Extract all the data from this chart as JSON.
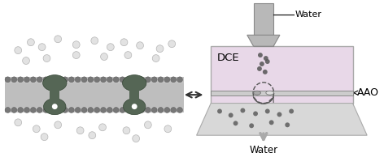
{
  "bg_color": "#ffffff",
  "membrane_gray": "#888888",
  "membrane_dark": "#555555",
  "membrane_light": "#aaaaaa",
  "protein_dark": "#556655",
  "protein_med": "#778877",
  "dce_box_face": "#e8e0e8",
  "dce_box_edge": "#aaaaaa",
  "tube_face": "#b0b0b0",
  "tube_edge": "#888888",
  "funnel_face": "#d0d0d0",
  "funnel_edge": "#aaaaaa",
  "arrow_color": "#444444",
  "text_color": "#000000",
  "dot_color": "#555555",
  "aao_line_color": "#888888",
  "label_DCE": "DCE",
  "label_AAO": "AAO",
  "label_water_top": "Water",
  "label_water_bot": "Water",
  "figsize": [
    4.72,
    1.94
  ],
  "dpi": 100
}
